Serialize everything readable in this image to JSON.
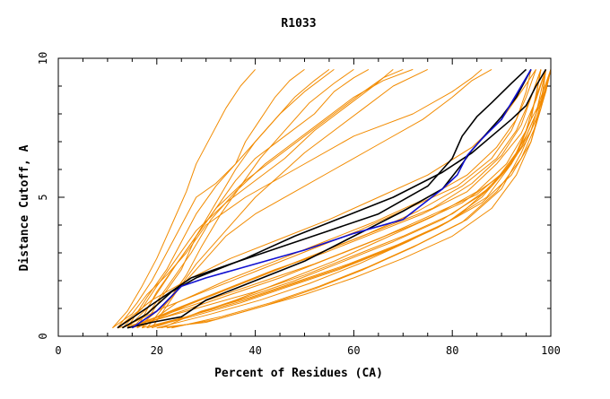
{
  "chart_data": {
    "type": "line",
    "title": "R1033",
    "xlabel": "Percent of Residues (CA)",
    "ylabel": "Distance Cutoff, A",
    "xlim": [
      0,
      100
    ],
    "ylim": [
      0,
      10
    ],
    "x_ticks": [
      0,
      20,
      40,
      60,
      80,
      100
    ],
    "y_ticks": [
      0,
      5,
      10
    ],
    "grid": false,
    "colors": {
      "orange": "#f28b00",
      "black": "#000000",
      "blue": "#1010d0"
    },
    "series": [
      {
        "color": "orange",
        "x": [
          11,
          15,
          18,
          22,
          26,
          30,
          38,
          48,
          60,
          72,
          80,
          84,
          86
        ],
        "y": [
          0.3,
          0.8,
          1.5,
          2.2,
          3.0,
          4.0,
          5.0,
          6.0,
          7.2,
          8.0,
          8.8,
          9.3,
          9.6
        ]
      },
      {
        "color": "orange",
        "x": [
          12,
          16,
          19,
          22,
          25,
          28,
          32,
          36,
          40,
          45,
          50,
          56
        ],
        "y": [
          0.3,
          1.2,
          2.0,
          3.0,
          4.0,
          5.0,
          5.5,
          6.2,
          7.0,
          8.0,
          8.8,
          9.6
        ]
      },
      {
        "color": "orange",
        "x": [
          13,
          17,
          20,
          24,
          28,
          34,
          40,
          46,
          52,
          58,
          64,
          68
        ],
        "y": [
          0.3,
          1.0,
          1.8,
          2.8,
          3.8,
          4.8,
          5.6,
          6.4,
          7.4,
          8.2,
          9.0,
          9.6
        ]
      },
      {
        "color": "orange",
        "x": [
          14,
          18,
          22,
          25,
          28,
          32,
          36,
          38,
          41,
          44,
          47,
          50
        ],
        "y": [
          0.3,
          1.4,
          2.4,
          3.4,
          4.4,
          5.4,
          6.2,
          7.0,
          7.8,
          8.6,
          9.2,
          9.6
        ]
      },
      {
        "color": "orange",
        "x": [
          15,
          19,
          23,
          27,
          31,
          36,
          42,
          48,
          54,
          60,
          66,
          72
        ],
        "y": [
          0.3,
          1.0,
          2.0,
          3.0,
          4.2,
          5.2,
          6.2,
          7.0,
          7.8,
          8.6,
          9.2,
          9.6
        ]
      },
      {
        "color": "orange",
        "x": [
          16,
          20,
          24,
          28,
          32,
          36,
          40,
          46,
          52,
          56,
          60,
          63
        ],
        "y": [
          0.3,
          1.6,
          2.6,
          3.6,
          4.6,
          5.6,
          6.4,
          7.2,
          8.0,
          8.8,
          9.3,
          9.6
        ]
      },
      {
        "color": "orange",
        "x": [
          16,
          22,
          26,
          30,
          34,
          40,
          48,
          56,
          66,
          74,
          80,
          84,
          88
        ],
        "y": [
          0.3,
          1.2,
          2.0,
          2.8,
          3.6,
          4.4,
          5.2,
          6.0,
          7.0,
          7.8,
          8.6,
          9.2,
          9.6
        ]
      },
      {
        "color": "orange",
        "x": [
          17,
          21,
          25,
          28,
          32,
          36,
          40,
          44,
          48,
          52,
          55
        ],
        "y": [
          0.3,
          1.4,
          2.4,
          3.6,
          4.8,
          6.0,
          7.0,
          7.8,
          8.6,
          9.2,
          9.6
        ]
      },
      {
        "color": "orange",
        "x": [
          18,
          22,
          26,
          29,
          33,
          37,
          41,
          46,
          51,
          56,
          60
        ],
        "y": [
          0.3,
          1.2,
          2.2,
          3.2,
          4.4,
          5.4,
          6.4,
          7.4,
          8.4,
          9.1,
          9.6
        ]
      },
      {
        "color": "orange",
        "x": [
          19,
          24,
          28,
          32,
          36,
          40,
          45,
          50,
          56,
          62,
          68,
          75
        ],
        "y": [
          0.3,
          1.6,
          2.6,
          3.4,
          4.2,
          5.0,
          5.8,
          6.6,
          7.4,
          8.2,
          9.0,
          9.6
        ]
      },
      {
        "color": "orange",
        "x": [
          14,
          18,
          21,
          24,
          28,
          32,
          38,
          44,
          50,
          56,
          62,
          66,
          70
        ],
        "y": [
          0.3,
          1.0,
          1.8,
          2.6,
          3.6,
          4.6,
          5.6,
          6.4,
          7.2,
          8.0,
          8.8,
          9.3,
          9.6
        ]
      },
      {
        "color": "orange",
        "x": [
          11,
          14,
          17,
          20,
          23,
          26,
          28,
          31,
          34,
          37,
          40
        ],
        "y": [
          0.3,
          0.9,
          1.8,
          2.8,
          4.0,
          5.2,
          6.2,
          7.2,
          8.2,
          9.0,
          9.6
        ]
      },
      {
        "color": "orange",
        "x": [
          12,
          20,
          30,
          40,
          50,
          60,
          70,
          80,
          88,
          93,
          96,
          98
        ],
        "y": [
          0.3,
          0.6,
          1.1,
          1.6,
          2.2,
          2.9,
          3.6,
          4.4,
          5.4,
          6.5,
          7.8,
          9.6
        ]
      },
      {
        "color": "orange",
        "x": [
          14,
          22,
          32,
          42,
          52,
          62,
          72,
          82,
          90,
          94,
          97,
          99
        ],
        "y": [
          0.3,
          0.8,
          1.4,
          2.0,
          2.6,
          3.3,
          4.0,
          4.8,
          5.8,
          6.8,
          8.0,
          9.6
        ]
      },
      {
        "color": "orange",
        "x": [
          15,
          25,
          35,
          45,
          55,
          65,
          75,
          85,
          91,
          95,
          98,
          100
        ],
        "y": [
          0.3,
          0.9,
          1.5,
          2.1,
          2.8,
          3.5,
          4.3,
          5.1,
          6.0,
          7.0,
          8.2,
          9.6
        ]
      },
      {
        "color": "orange",
        "x": [
          18,
          27,
          37,
          47,
          57,
          67,
          77,
          86,
          92,
          96,
          98,
          99
        ],
        "y": [
          0.3,
          0.7,
          1.2,
          1.8,
          2.4,
          3.1,
          3.9,
          4.8,
          5.8,
          7.0,
          8.2,
          9.6
        ]
      },
      {
        "color": "orange",
        "x": [
          20,
          30,
          40,
          50,
          60,
          70,
          80,
          88,
          93,
          96,
          98,
          100
        ],
        "y": [
          0.3,
          0.5,
          1.0,
          1.5,
          2.1,
          2.8,
          3.6,
          4.6,
          5.8,
          7.0,
          8.4,
          9.6
        ]
      },
      {
        "color": "orange",
        "x": [
          22,
          32,
          42,
          52,
          62,
          72,
          82,
          89,
          94,
          97,
          99,
          100
        ],
        "y": [
          0.3,
          0.6,
          1.1,
          1.7,
          2.4,
          3.2,
          4.1,
          5.2,
          6.4,
          7.6,
          8.8,
          9.6
        ]
      },
      {
        "color": "orange",
        "x": [
          13,
          21,
          31,
          41,
          51,
          61,
          71,
          81,
          88,
          92,
          95,
          97
        ],
        "y": [
          0.3,
          1.0,
          1.7,
          2.4,
          3.1,
          3.8,
          4.6,
          5.4,
          6.4,
          7.4,
          8.6,
          9.6
        ]
      },
      {
        "color": "orange",
        "x": [
          16,
          26,
          36,
          46,
          56,
          66,
          76,
          84,
          90,
          94,
          96,
          98
        ],
        "y": [
          0.3,
          1.1,
          1.8,
          2.5,
          3.2,
          3.9,
          4.6,
          5.5,
          6.5,
          7.6,
          8.6,
          9.6
        ]
      },
      {
        "color": "orange",
        "x": [
          17,
          24,
          34,
          44,
          54,
          64,
          74,
          83,
          89,
          93,
          95,
          96
        ],
        "y": [
          0.3,
          1.2,
          2.0,
          2.7,
          3.4,
          4.1,
          4.9,
          5.8,
          6.8,
          7.8,
          8.8,
          9.6
        ]
      },
      {
        "color": "orange",
        "x": [
          19,
          28,
          38,
          48,
          58,
          68,
          78,
          87,
          92,
          95,
          97,
          98
        ],
        "y": [
          0.3,
          0.8,
          1.3,
          1.9,
          2.5,
          3.2,
          4.0,
          5.0,
          6.2,
          7.4,
          8.6,
          9.6
        ]
      },
      {
        "color": "orange",
        "x": [
          21,
          29,
          39,
          49,
          59,
          69,
          79,
          86,
          91,
          95,
          98,
          99
        ],
        "y": [
          0.3,
          0.9,
          1.4,
          2.0,
          2.6,
          3.3,
          4.1,
          5.0,
          6.0,
          7.2,
          8.4,
          9.6
        ]
      },
      {
        "color": "orange",
        "x": [
          23,
          33,
          43,
          53,
          63,
          73,
          83,
          90,
          94,
          97,
          99,
          100
        ],
        "y": [
          0.3,
          0.7,
          1.2,
          1.8,
          2.5,
          3.3,
          4.2,
          5.3,
          6.6,
          7.8,
          8.9,
          9.6
        ]
      },
      {
        "color": "orange",
        "x": [
          12,
          19,
          27,
          35,
          45,
          55,
          65,
          75,
          84,
          90,
          94,
          97
        ],
        "y": [
          0.3,
          1.3,
          2.1,
          2.8,
          3.5,
          4.2,
          5.0,
          5.8,
          6.8,
          7.8,
          8.8,
          9.6
        ]
      },
      {
        "color": "orange",
        "x": [
          14,
          23,
          33,
          43,
          53,
          63,
          73,
          82,
          89,
          93,
          96,
          98
        ],
        "y": [
          0.3,
          0.9,
          1.6,
          2.3,
          3.0,
          3.7,
          4.5,
          5.4,
          6.4,
          7.4,
          8.6,
          9.6
        ]
      },
      {
        "color": "orange",
        "x": [
          17,
          26,
          36,
          46,
          56,
          66,
          76,
          85,
          91,
          95,
          97,
          99
        ],
        "y": [
          0.3,
          0.7,
          1.3,
          2.0,
          2.7,
          3.5,
          4.3,
          5.2,
          6.2,
          7.4,
          8.6,
          9.6
        ]
      },
      {
        "color": "orange",
        "x": [
          20,
          31,
          41,
          51,
          61,
          71,
          81,
          88,
          93,
          96,
          99,
          100
        ],
        "y": [
          0.3,
          0.8,
          1.3,
          1.9,
          2.6,
          3.4,
          4.3,
          5.4,
          6.6,
          7.8,
          8.8,
          9.6
        ]
      },
      {
        "color": "orange",
        "x": [
          15,
          24,
          34,
          44,
          54,
          64,
          74,
          83,
          89,
          94,
          97,
          99
        ],
        "y": [
          0.3,
          1.0,
          1.7,
          2.4,
          3.0,
          3.7,
          4.4,
          5.2,
          6.2,
          7.3,
          8.5,
          9.6
        ]
      },
      {
        "color": "orange",
        "x": [
          18,
          28,
          38,
          48,
          58,
          68,
          78,
          86,
          92,
          96,
          98,
          100
        ],
        "y": [
          0.3,
          0.8,
          1.4,
          2.0,
          2.7,
          3.4,
          4.2,
          5.1,
          6.2,
          7.4,
          8.6,
          9.6
        ]
      },
      {
        "color": "black",
        "x": [
          12,
          17,
          22,
          27,
          35,
          45,
          55,
          65,
          75,
          80,
          82,
          85,
          88,
          92,
          95
        ],
        "y": [
          0.3,
          0.9,
          1.5,
          2.1,
          2.6,
          3.2,
          3.8,
          4.4,
          5.4,
          6.4,
          7.2,
          7.9,
          8.4,
          9.1,
          9.6
        ]
      },
      {
        "color": "black",
        "x": [
          13,
          18,
          23,
          28,
          38,
          48,
          58,
          68,
          78,
          84,
          88,
          92,
          95,
          97,
          99
        ],
        "y": [
          0.3,
          0.8,
          1.6,
          2.1,
          2.8,
          3.6,
          4.3,
          5.0,
          5.9,
          6.6,
          7.2,
          7.8,
          8.3,
          9.0,
          9.6
        ]
      },
      {
        "color": "black",
        "x": [
          14,
          19,
          25,
          30,
          40,
          50,
          60,
          70,
          78,
          82,
          84,
          87,
          90,
          93,
          96
        ],
        "y": [
          0.3,
          0.5,
          0.7,
          1.3,
          2.0,
          2.7,
          3.6,
          4.5,
          5.3,
          6.2,
          6.7,
          7.3,
          7.9,
          8.6,
          9.6
        ]
      },
      {
        "color": "blue",
        "x": [
          15,
          20,
          25,
          30,
          40,
          50,
          60,
          70,
          78,
          81,
          83,
          86,
          90,
          93,
          96
        ],
        "y": [
          0.3,
          0.9,
          1.8,
          2.1,
          2.6,
          3.1,
          3.7,
          4.2,
          5.3,
          5.8,
          6.5,
          7.1,
          7.8,
          8.7,
          9.6
        ]
      }
    ]
  }
}
